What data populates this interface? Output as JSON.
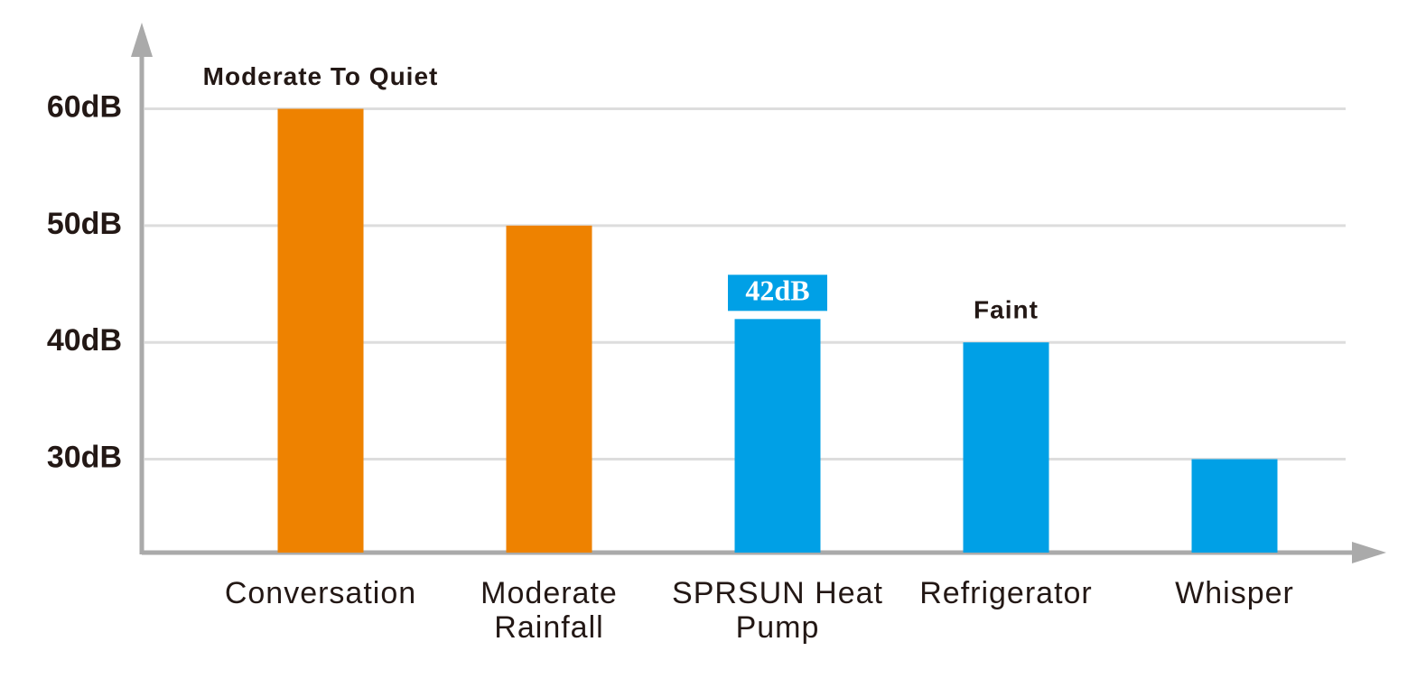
{
  "chart_data": {
    "type": "bar",
    "categories": [
      "Conversation",
      "Moderate Rainfall",
      "SPRSUN Heat Pump",
      "Refrigerator",
      "Whisper"
    ],
    "values": [
      60,
      50,
      42,
      40,
      30
    ],
    "value_labels": [
      null,
      null,
      "42dB",
      null,
      null
    ],
    "colors": [
      "#ee8200",
      "#ee8200",
      "#00a0e6",
      "#00a0e6",
      "#00a0e6"
    ],
    "annotations": [
      {
        "text": "Moderate To Quiet",
        "category": 0
      },
      {
        "text": "Faint",
        "category": 3
      }
    ],
    "ylim": [
      22,
      67
    ],
    "yticks": [
      {
        "value": 30,
        "label": "30dB"
      },
      {
        "value": 40,
        "label": "40dB"
      },
      {
        "value": 50,
        "label": "50dB"
      },
      {
        "value": 60,
        "label": "60dB"
      }
    ],
    "grid": true
  }
}
